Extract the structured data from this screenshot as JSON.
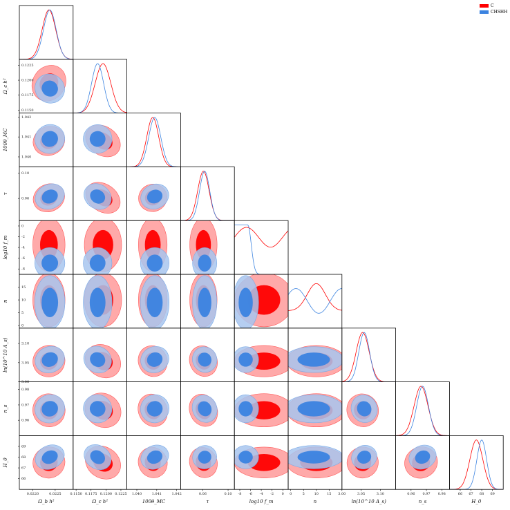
{
  "chart_data": {
    "type": "corner",
    "title": "",
    "legend": {
      "placement": "top-right",
      "entries": [
        {
          "name": "C",
          "color": "#ff0000"
        },
        {
          "name": "CHSHH",
          "color": "#3b83e0"
        }
      ]
    },
    "series": [
      {
        "name": "C",
        "color": "#ff0000"
      },
      {
        "name": "CHSHH",
        "color": "#3b83e0"
      }
    ],
    "parameters": [
      {
        "key": "obh2",
        "label": "Ω_b h²",
        "range": [
          0.0217,
          0.0229
        ],
        "ticks": [
          "0.0220",
          "0.0225"
        ],
        "C": {
          "mean": 0.02236,
          "sd": 0.00015
        },
        "CHSHH": {
          "mean": 0.02238,
          "sd": 0.00014
        }
      },
      {
        "key": "och2",
        "label": "Ω_c h²",
        "range": [
          0.1145,
          0.1235
        ],
        "ticks": [
          "0.1150",
          "0.1175",
          "0.1200",
          "0.1225"
        ],
        "C": {
          "mean": 0.1195,
          "sd": 0.0013
        },
        "CHSHH": {
          "mean": 0.1186,
          "sd": 0.001
        }
      },
      {
        "key": "theta",
        "label": "100θ_MC",
        "range": [
          1.0395,
          1.0422
        ],
        "ticks": [
          "1.040",
          "1.041",
          "1.042"
        ],
        "C": {
          "mean": 1.0408,
          "sd": 0.0003
        },
        "CHSHH": {
          "mean": 1.0409,
          "sd": 0.0003
        }
      },
      {
        "key": "tau",
        "label": "τ",
        "range": [
          0.025,
          0.11
        ],
        "ticks": [
          "0.02",
          "0.06",
          "0.10"
        ],
        "C": {
          "mean": 0.061,
          "sd": 0.009
        },
        "CHSHH": {
          "mean": 0.063,
          "sd": 0.008
        }
      },
      {
        "key": "logfm",
        "label": "log10 f_m",
        "range": [
          -9,
          1
        ],
        "ticks": [
          "-8",
          "-6",
          "-4",
          "-2",
          "0"
        ],
        "C": {
          "mean": -3.5,
          "sd": 2.7
        },
        "CHSHH": {
          "mean": -6.9,
          "sd": 1.0
        }
      },
      {
        "key": "n",
        "label": "n",
        "range": [
          -1,
          20
        ],
        "ticks": [
          "0",
          "5",
          "10",
          "15"
        ],
        "C": {
          "mean": 10,
          "sd": 6
        },
        "CHSHH": {
          "mean": 9,
          "sd": 6
        }
      },
      {
        "key": "lnAs",
        "label": "ln(10^10 A_s)",
        "range": [
          3.0,
          3.14
        ],
        "ticks": [
          "3.00",
          "3.05",
          "3.10",
          "3.15"
        ],
        "C": {
          "mean": 3.054,
          "sd": 0.017
        },
        "CHSHH": {
          "mean": 3.058,
          "sd": 0.014
        }
      },
      {
        "key": "ns",
        "label": "n_s",
        "range": [
          0.95,
          0.985
        ],
        "ticks": [
          "0.96",
          "0.97",
          "0.98"
        ],
        "C": {
          "mean": 0.9665,
          "sd": 0.0045
        },
        "CHSHH": {
          "mean": 0.9675,
          "sd": 0.0038
        }
      },
      {
        "key": "H0",
        "label": "H_0",
        "range": [
          65,
          70
        ],
        "ticks": [
          "66",
          "67",
          "68",
          "69"
        ],
        "C": {
          "mean": 67.5,
          "sd": 0.6
        },
        "CHSHH": {
          "mean": 68.0,
          "sd": 0.45
        }
      }
    ]
  }
}
